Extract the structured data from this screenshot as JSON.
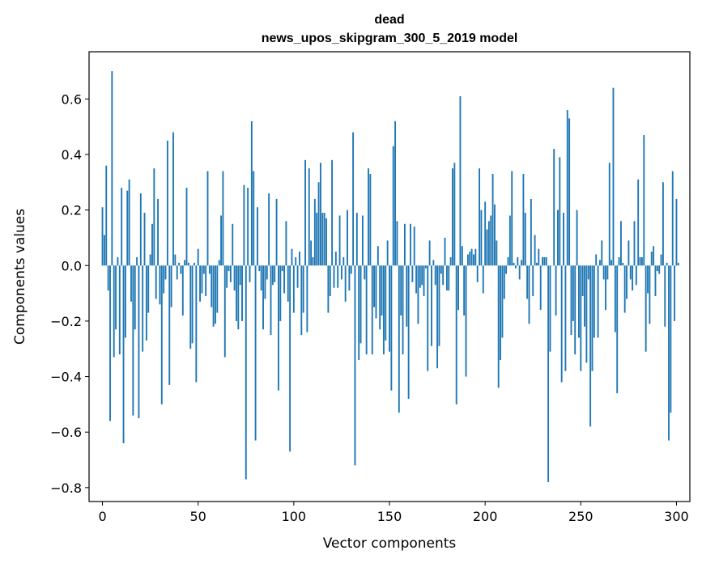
{
  "chart_data": {
    "type": "bar",
    "title": "dead",
    "subtitle": "news_upos_skipgram_300_5_2019 model",
    "xlabel": "Vector components",
    "ylabel": "Components values",
    "xlim": [
      -7,
      307
    ],
    "ylim": [
      -0.85,
      0.77
    ],
    "xticks": [
      0,
      50,
      100,
      150,
      200,
      250,
      300
    ],
    "xtick_labels": [
      "0",
      "50",
      "100",
      "150",
      "200",
      "250",
      "300"
    ],
    "yticks": [
      -0.8,
      -0.6,
      -0.4,
      -0.2,
      0.0,
      0.2,
      0.4,
      0.6
    ],
    "ytick_labels": [
      "−0.8",
      "−0.6",
      "−0.4",
      "−0.2",
      "0.0",
      "0.2",
      "0.4",
      "0.6"
    ],
    "grid": false,
    "bar_color": "#1f77b4",
    "x_start": 0,
    "values": [
      0.21,
      0.11,
      0.36,
      -0.09,
      -0.56,
      0.7,
      -0.33,
      -0.23,
      0.03,
      -0.32,
      0.28,
      -0.64,
      -0.26,
      0.27,
      0.31,
      -0.13,
      -0.54,
      -0.23,
      0.03,
      -0.55,
      0.26,
      -0.31,
      0.19,
      -0.27,
      -0.17,
      0.04,
      0.15,
      0.35,
      -0.12,
      0.24,
      -0.14,
      -0.5,
      -0.1,
      -0.05,
      0.45,
      -0.43,
      -0.15,
      0.48,
      0.04,
      -0.05,
      0.01,
      -0.03,
      -0.18,
      0.02,
      0.28,
      0.01,
      -0.3,
      -0.28,
      0.01,
      -0.42,
      0.06,
      -0.13,
      -0.1,
      -0.03,
      -0.11,
      0.34,
      -0.03,
      -0.15,
      -0.22,
      -0.21,
      -0.17,
      0.02,
      0.18,
      0.34,
      -0.33,
      -0.08,
      -0.02,
      -0.06,
      0.15,
      -0.09,
      -0.2,
      -0.23,
      -0.07,
      -0.2,
      0.29,
      -0.77,
      0.28,
      -0.06,
      0.52,
      0.34,
      -0.63,
      0.21,
      -0.02,
      -0.09,
      -0.23,
      -0.12,
      -0.05,
      0.26,
      -0.25,
      -0.07,
      -0.06,
      0.24,
      -0.45,
      -0.2,
      -0.02,
      -0.1,
      0.16,
      -0.13,
      -0.67,
      0.06,
      -0.17,
      0.03,
      -0.08,
      0.05,
      -0.25,
      -0.17,
      0.38,
      -0.24,
      0.35,
      0.09,
      0.03,
      0.24,
      0.19,
      0.3,
      0.37,
      0.19,
      0.19,
      0.17,
      -0.17,
      -0.11,
      0.38,
      -0.08,
      0.05,
      -0.08,
      0.18,
      -0.05,
      0.03,
      -0.13,
      0.2,
      -0.09,
      -0.03,
      0.48,
      -0.72,
      0.19,
      -0.34,
      -0.28,
      0.18,
      -0.05,
      -0.32,
      0.35,
      0.33,
      -0.32,
      -0.15,
      -0.19,
      0.07,
      -0.23,
      -0.18,
      -0.32,
      -0.27,
      0.09,
      -0.31,
      -0.45,
      0.43,
      0.52,
      0.16,
      -0.53,
      -0.18,
      -0.32,
      0.15,
      -0.22,
      -0.48,
      0.15,
      -0.06,
      0.14,
      -0.1,
      -0.21,
      -0.08,
      -0.07,
      -0.11,
      -0.01,
      -0.38,
      0.09,
      -0.29,
      0.02,
      -0.07,
      -0.37,
      -0.29,
      -0.03,
      -0.07,
      0.1,
      -0.09,
      -0.09,
      0.03,
      0.35,
      0.37,
      -0.5,
      -0.16,
      0.61,
      0.07,
      -0.18,
      -0.4,
      0.04,
      0.05,
      0.06,
      0.04,
      0.06,
      -0.06,
      0.35,
      0.2,
      -0.1,
      0.23,
      0.13,
      0.16,
      0.18,
      0.33,
      0.22,
      0.09,
      -0.44,
      -0.34,
      -0.26,
      -0.12,
      -0.03,
      0.03,
      0.18,
      0.34,
      0.01,
      -0.01,
      0.03,
      -0.05,
      0.02,
      0.33,
      0.19,
      -0.12,
      -0.21,
      0.24,
      -0.11,
      0.11,
      0.01,
      0.06,
      -0.16,
      0.03,
      0.03,
      0.03,
      -0.78,
      -0.31,
      0.0,
      0.42,
      -0.18,
      0.2,
      0.39,
      -0.42,
      0.19,
      -0.38,
      0.56,
      0.53,
      -0.25,
      -0.2,
      -0.32,
      0.2,
      -0.26,
      -0.38,
      -0.11,
      -0.22,
      -0.35,
      -0.05,
      -0.58,
      -0.38,
      -0.26,
      0.04,
      -0.26,
      0.02,
      0.09,
      -0.05,
      -0.16,
      -0.05,
      0.37,
      0.02,
      0.64,
      -0.24,
      -0.46,
      0.03,
      0.16,
      0.01,
      -0.17,
      -0.12,
      0.09,
      -0.05,
      -0.09,
      0.16,
      -0.07,
      0.31,
      0.03,
      0.03,
      0.47,
      -0.31,
      -0.1,
      -0.21,
      0.05,
      0.07,
      -0.11,
      -0.02,
      -0.03,
      0.04,
      0.3,
      -0.22,
      0.01,
      -0.63,
      -0.53,
      0.34,
      -0.2,
      0.24,
      0.01
    ]
  }
}
